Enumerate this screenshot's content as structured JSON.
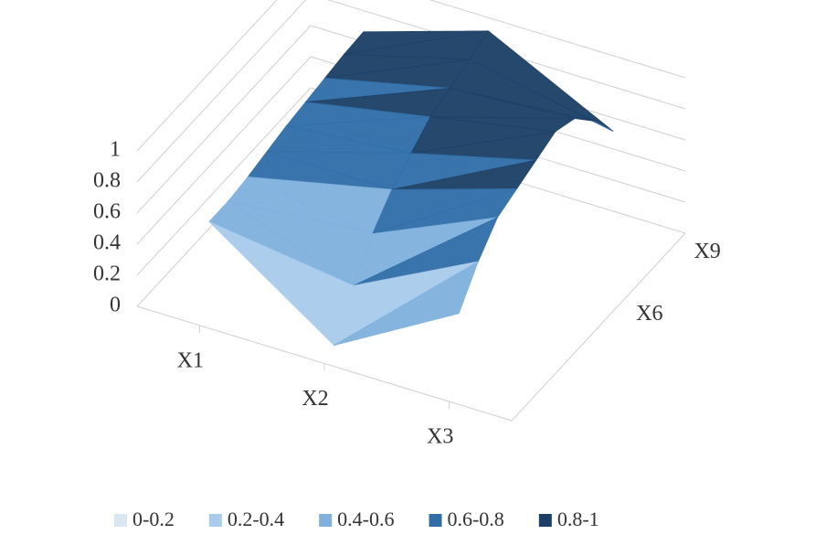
{
  "chart_data": {
    "type": "surface",
    "categories": [
      "X1",
      "X2",
      "X3"
    ],
    "depth_categories": [
      null,
      null,
      null,
      null,
      null,
      "X6",
      null,
      null,
      "X9"
    ],
    "values": [
      [
        0.6,
        0.05,
        0.5
      ],
      [
        0.6,
        0.3,
        0.7
      ],
      [
        0.62,
        0.5,
        0.85
      ],
      [
        0.65,
        0.65,
        0.9
      ],
      [
        0.68,
        0.75,
        0.95
      ],
      [
        0.7,
        0.85,
        1.0
      ],
      [
        0.72,
        0.9,
        0.95
      ],
      [
        0.74,
        0.95,
        0.8
      ],
      [
        0.75,
        1.0,
        0.6
      ]
    ],
    "zlim": [
      0,
      1
    ],
    "zticks": [
      0,
      0.2,
      0.4,
      0.6,
      0.8,
      1
    ],
    "bands": [
      {
        "name": "0-0.2",
        "color": "#d9e7f5",
        "range": [
          0,
          0.2
        ]
      },
      {
        "name": "0.2-0.4",
        "color": "#a9cbec",
        "range": [
          0.2,
          0.4
        ]
      },
      {
        "name": "0.4-0.6",
        "color": "#7fb0de",
        "range": [
          0.4,
          0.6
        ]
      },
      {
        "name": "0.6-0.8",
        "color": "#2f6ea8",
        "range": [
          0.6,
          0.8
        ]
      },
      {
        "name": "0.8-1",
        "color": "#1b3f66",
        "range": [
          0.8,
          1
        ]
      }
    ],
    "grid": true
  }
}
